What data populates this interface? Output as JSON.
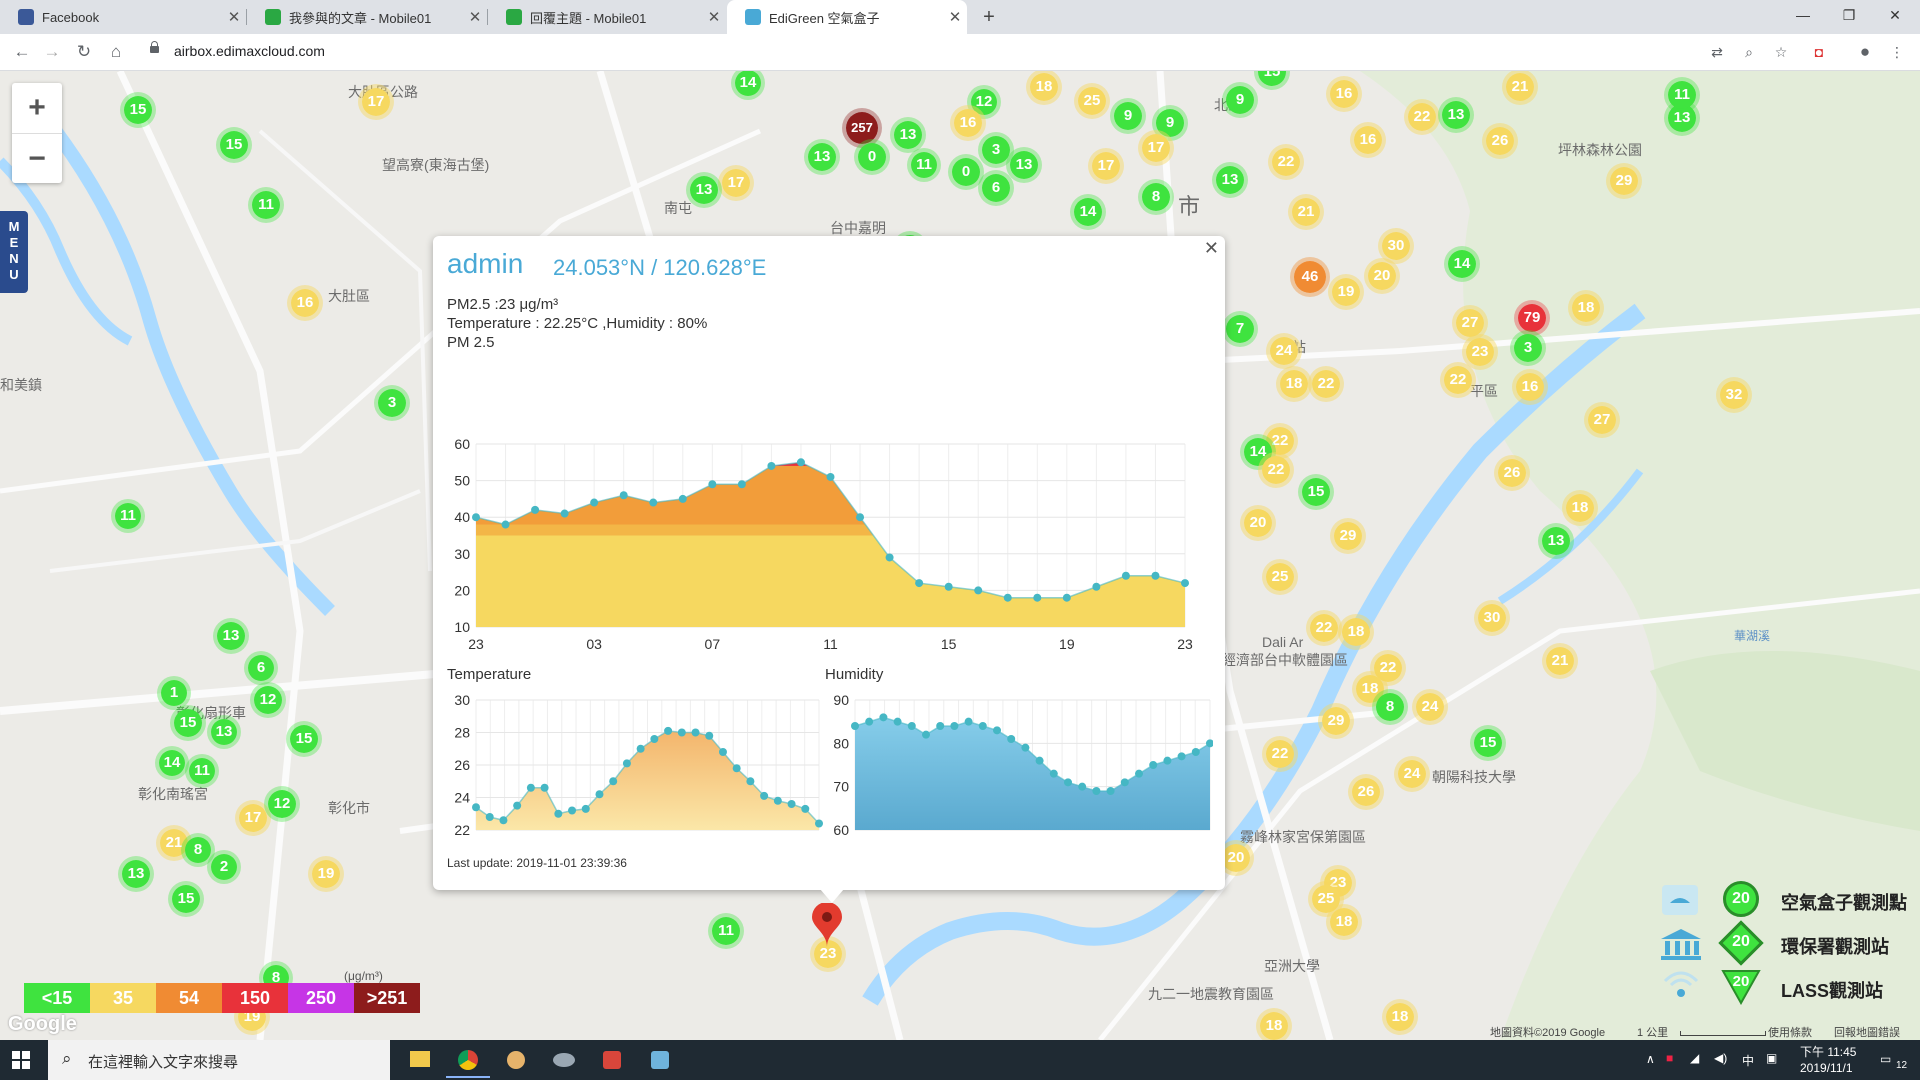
{
  "browser": {
    "tabs": [
      {
        "title": "Facebook",
        "color": "#3b5998"
      },
      {
        "title": "我參與的文章 - Mobile01",
        "color": "#2aa843"
      },
      {
        "title": "回覆主題 - Mobile01",
        "color": "#2aa843"
      },
      {
        "title": "EdiGreen 空氣盒子",
        "color": "#49a9d6"
      }
    ],
    "url": "airbox.edimaxcloud.com"
  },
  "map": {
    "labels": [
      {
        "text": "大肚區"
      },
      {
        "text": "彰化市"
      },
      {
        "text": "南屯"
      },
      {
        "text": "北區"
      },
      {
        "text": "市"
      },
      {
        "text": "平區"
      },
      {
        "text": "坪林森林公園"
      },
      {
        "text": "望高寮(東海古堡)"
      },
      {
        "text": "大肚區公路"
      },
      {
        "text": "彰化扇形車"
      },
      {
        "text": "彰化南瑤宮"
      },
      {
        "text": "霧峰林家宮保第園區"
      },
      {
        "text": "亞洲大學"
      },
      {
        "text": "九二一地震教育園區"
      },
      {
        "text": "經濟部台中軟體園區"
      },
      {
        "text": "台中嘉明"
      },
      {
        "text": "車站"
      },
      {
        "text": "和美鎮"
      },
      {
        "text": "朝陽科技大學"
      },
      {
        "text": "Dali Ar"
      },
      {
        "text": "華湖溪"
      }
    ],
    "markers": [
      {
        "v": "15",
        "c": "g"
      },
      {
        "v": "15",
        "c": "g"
      },
      {
        "v": "11",
        "c": "g"
      },
      {
        "v": "17",
        "c": "y"
      },
      {
        "v": "16",
        "c": "y"
      },
      {
        "v": "3",
        "c": "g"
      },
      {
        "v": "11",
        "c": "g"
      },
      {
        "v": "13",
        "c": "g"
      },
      {
        "v": "6",
        "c": "g"
      },
      {
        "v": "12",
        "c": "g"
      },
      {
        "v": "1",
        "c": "g"
      },
      {
        "v": "15",
        "c": "g"
      },
      {
        "v": "13",
        "c": "g"
      },
      {
        "v": "15",
        "c": "g"
      },
      {
        "v": "14",
        "c": "g"
      },
      {
        "v": "11",
        "c": "g"
      },
      {
        "v": "17",
        "c": "y"
      },
      {
        "v": "12",
        "c": "g"
      },
      {
        "v": "21",
        "c": "y"
      },
      {
        "v": "8",
        "c": "g"
      },
      {
        "v": "2",
        "c": "g"
      },
      {
        "v": "13",
        "c": "g"
      },
      {
        "v": "15",
        "c": "g"
      },
      {
        "v": "19",
        "c": "y"
      },
      {
        "v": "8",
        "c": "g"
      },
      {
        "v": "14",
        "c": "g"
      },
      {
        "v": "257",
        "c": "d"
      },
      {
        "v": "13",
        "c": "g"
      },
      {
        "v": "0",
        "c": "g"
      },
      {
        "v": "13",
        "c": "g"
      },
      {
        "v": "11",
        "c": "g"
      },
      {
        "v": "17",
        "c": "y"
      },
      {
        "v": "13",
        "c": "g"
      },
      {
        "v": "14",
        "c": "g"
      },
      {
        "v": "12",
        "c": "g"
      },
      {
        "v": "16",
        "c": "y"
      },
      {
        "v": "18",
        "c": "y"
      },
      {
        "v": "25",
        "c": "y"
      },
      {
        "v": "9",
        "c": "g"
      },
      {
        "v": "9",
        "c": "g"
      },
      {
        "v": "3",
        "c": "g"
      },
      {
        "v": "0",
        "c": "g"
      },
      {
        "v": "6",
        "c": "g"
      },
      {
        "v": "13",
        "c": "g"
      },
      {
        "v": "17",
        "c": "y"
      },
      {
        "v": "17",
        "c": "y"
      },
      {
        "v": "8",
        "c": "g"
      },
      {
        "v": "14",
        "c": "g"
      },
      {
        "v": "13",
        "c": "g"
      },
      {
        "v": "9",
        "c": "g"
      },
      {
        "v": "15",
        "c": "g"
      },
      {
        "v": "16",
        "c": "y"
      },
      {
        "v": "16",
        "c": "y"
      },
      {
        "v": "22",
        "c": "y"
      },
      {
        "v": "13",
        "c": "g"
      },
      {
        "v": "21",
        "c": "y"
      },
      {
        "v": "26",
        "c": "y"
      },
      {
        "v": "13",
        "c": "g"
      },
      {
        "v": "22",
        "c": "y"
      },
      {
        "v": "21",
        "c": "y"
      },
      {
        "v": "30",
        "c": "y"
      },
      {
        "v": "46",
        "c": "o"
      },
      {
        "v": "19",
        "c": "y"
      },
      {
        "v": "20",
        "c": "y"
      },
      {
        "v": "14",
        "c": "g"
      },
      {
        "v": "79",
        "c": "r"
      },
      {
        "v": "18",
        "c": "y"
      },
      {
        "v": "27",
        "c": "y"
      },
      {
        "v": "3",
        "c": "g"
      },
      {
        "v": "23",
        "c": "y"
      },
      {
        "v": "22",
        "c": "y"
      },
      {
        "v": "16",
        "c": "y"
      },
      {
        "v": "18",
        "c": "y"
      },
      {
        "v": "22",
        "c": "y"
      },
      {
        "v": "24",
        "c": "y"
      },
      {
        "v": "7",
        "c": "g"
      },
      {
        "v": "22",
        "c": "y"
      },
      {
        "v": "29",
        "c": "y"
      },
      {
        "v": "11",
        "c": "g"
      },
      {
        "v": "32",
        "c": "y"
      },
      {
        "v": "27",
        "c": "y"
      },
      {
        "v": "14",
        "c": "g"
      },
      {
        "v": "22",
        "c": "y"
      },
      {
        "v": "15",
        "c": "g"
      },
      {
        "v": "26",
        "c": "y"
      },
      {
        "v": "18",
        "c": "y"
      },
      {
        "v": "13",
        "c": "g"
      },
      {
        "v": "20",
        "c": "y"
      },
      {
        "v": "29",
        "c": "y"
      },
      {
        "v": "25",
        "c": "y"
      },
      {
        "v": "30",
        "c": "y"
      },
      {
        "v": "22",
        "c": "y"
      },
      {
        "v": "18",
        "c": "y"
      },
      {
        "v": "21",
        "c": "y"
      },
      {
        "v": "22",
        "c": "y"
      },
      {
        "v": "18",
        "c": "y"
      },
      {
        "v": "8",
        "c": "g"
      },
      {
        "v": "24",
        "c": "y"
      },
      {
        "v": "29",
        "c": "y"
      },
      {
        "v": "15",
        "c": "g"
      },
      {
        "v": "22",
        "c": "y"
      },
      {
        "v": "24",
        "c": "y"
      },
      {
        "v": "26",
        "c": "y"
      },
      {
        "v": "20",
        "c": "y"
      },
      {
        "v": "23",
        "c": "y"
      },
      {
        "v": "25",
        "c": "y"
      },
      {
        "v": "18",
        "c": "y"
      },
      {
        "v": "18",
        "c": "y"
      },
      {
        "v": "11",
        "c": "g"
      },
      {
        "v": "23",
        "c": "y"
      },
      {
        "v": "18",
        "c": "y"
      },
      {
        "v": "19",
        "c": "y"
      }
    ]
  },
  "popup": {
    "title": "admin",
    "coords": "24.053°N / 120.628°E",
    "pm25_line": "PM2.5 :23 μg/m³",
    "temp_line": "Temperature : 22.25°C ,Humidity : 80%",
    "chart_title": "PM 2.5",
    "temp_title": "Temperature",
    "hum_title": "Humidity",
    "last_update": "Last update: 2019-11-01 23:39:36"
  },
  "chart_data": [
    {
      "type": "area",
      "title": "PM 2.5",
      "xticks": [
        "23",
        "03",
        "07",
        "11",
        "15",
        "19",
        "23"
      ],
      "yticks": [
        10,
        20,
        30,
        40,
        50,
        60
      ],
      "ylim": [
        10,
        60
      ],
      "values": [
        40,
        38,
        42,
        41,
        44,
        46,
        44,
        45,
        49,
        49,
        54,
        55,
        51,
        40,
        29,
        22,
        21,
        20,
        18,
        18,
        18,
        21,
        24,
        24,
        22
      ]
    },
    {
      "type": "area",
      "title": "Temperature",
      "yticks": [
        22,
        24,
        26,
        28,
        30
      ],
      "ylim": [
        22,
        30
      ],
      "values": [
        23.4,
        22.8,
        22.6,
        23.5,
        24.6,
        24.6,
        23.0,
        23.2,
        23.3,
        24.2,
        25.0,
        26.1,
        27.0,
        27.6,
        28.1,
        28.0,
        28.0,
        27.8,
        26.8,
        25.8,
        25.0,
        24.1,
        23.8,
        23.6,
        23.3,
        22.4
      ]
    },
    {
      "type": "area",
      "title": "Humidity",
      "yticks": [
        60,
        70,
        80,
        90
      ],
      "ylim": [
        60,
        90
      ],
      "values": [
        84,
        85,
        86,
        85,
        84,
        82,
        84,
        84,
        85,
        84,
        83,
        81,
        79,
        76,
        73,
        71,
        70,
        69,
        69,
        71,
        73,
        75,
        76,
        77,
        78,
        80
      ]
    }
  ],
  "legend": {
    "scale": [
      {
        "label": "<15",
        "color": "#3fe33f"
      },
      {
        "label": "35",
        "color": "#f6d860"
      },
      {
        "label": "54",
        "color": "#f08b33"
      },
      {
        "label": "150",
        "color": "#e8323a"
      },
      {
        "label": "250",
        "color": "#c635e6"
      },
      {
        "label": ">251",
        "color": "#8d1c1c"
      }
    ],
    "unit": "(μg/m³)",
    "google": "Google",
    "stations": [
      {
        "value": "20",
        "label": "空氣盒子觀測點"
      },
      {
        "value": "20",
        "label": "環保署觀測站"
      },
      {
        "value": "20",
        "label": "LASS觀測站"
      }
    ],
    "attribution": [
      "地圖資料©2019 Google",
      "1 公里",
      "使用條款",
      "回報地圖錯誤"
    ]
  },
  "taskbar": {
    "search_placeholder": "在這裡輸入文字來搜尋",
    "ime": "中",
    "time": "下午 11:45",
    "date": "2019/11/1",
    "notifications": "12"
  }
}
